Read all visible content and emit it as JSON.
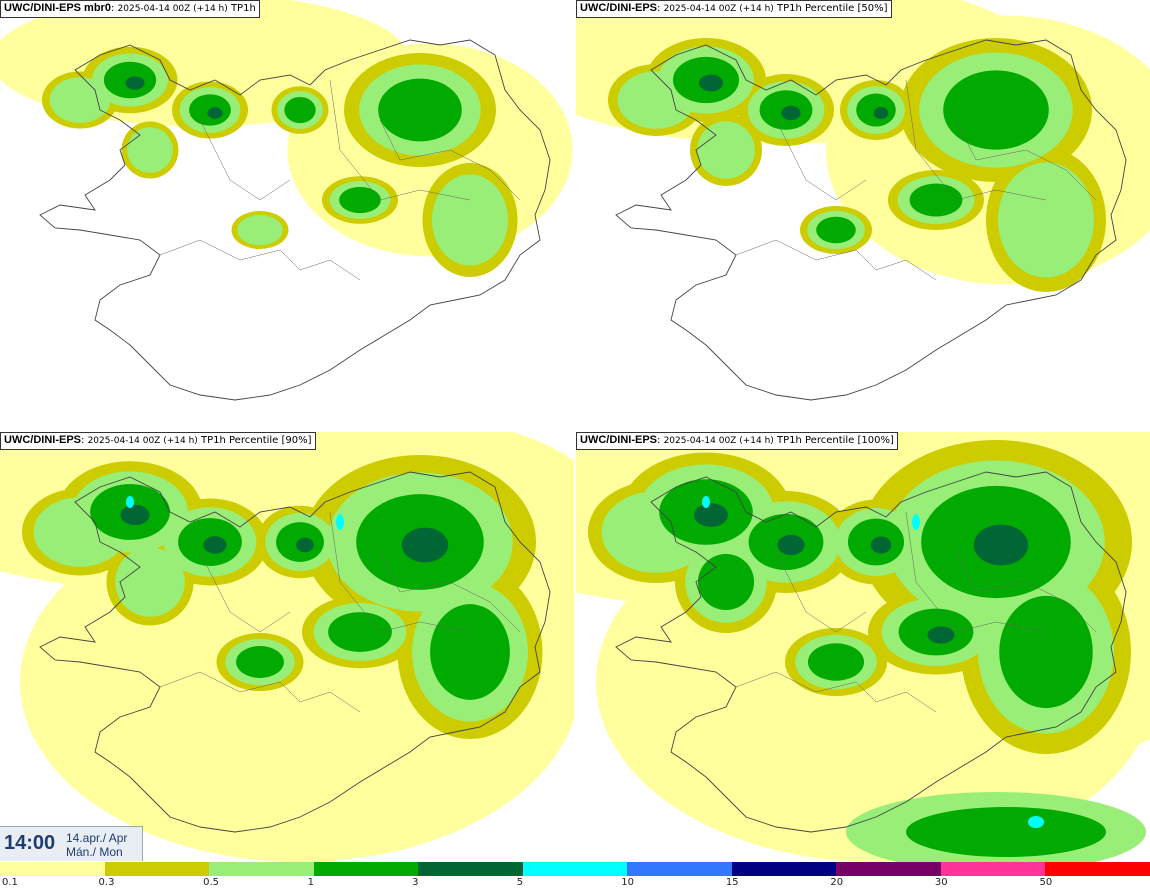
{
  "panels": [
    {
      "model": "UWC/DINI-EPS mbr0",
      "meta": "2025-04-14 00Z (+14 h)",
      "field": "TP1h",
      "coverage": 1
    },
    {
      "model": "UWC/DINI-EPS",
      "meta": "2025-04-14 00Z (+14 h)",
      "field": "TP1h Percentile [50%]",
      "coverage": 2
    },
    {
      "model": "UWC/DINI-EPS",
      "meta": "2025-04-14 00Z (+14 h)",
      "field": "TP1h Percentile [90%]",
      "coverage": 3
    },
    {
      "model": "UWC/DINI-EPS",
      "meta": "2025-04-14 00Z (+14 h)",
      "field": "TP1h Percentile [100%]",
      "coverage": 4
    }
  ],
  "time_box": {
    "time": "14:00",
    "date_line1": "14.apr./ Apr",
    "date_line2": "Mán./ Mon"
  },
  "legend": {
    "colors": [
      "#ffff9e",
      "#cccc00",
      "#99ee77",
      "#00aa00",
      "#006633",
      "#00ffff",
      "#3377ff",
      "#000080",
      "#770066",
      "#ff3399",
      "#ff0000"
    ],
    "labels": [
      "0.1",
      "0.3",
      "0.5",
      "1",
      "3",
      "5",
      "10",
      "15",
      "20",
      "30",
      "50"
    ]
  }
}
